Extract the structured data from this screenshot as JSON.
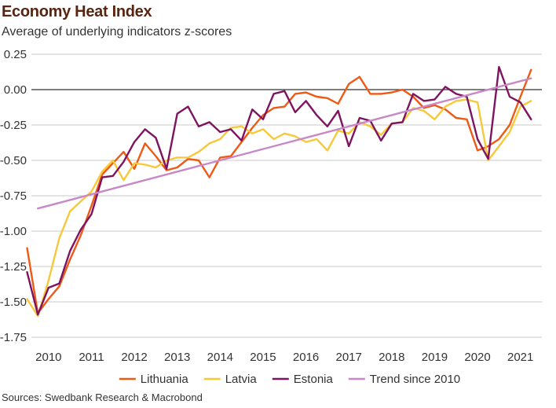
{
  "title": "Economy Heat Index",
  "subtitle": "Average of underlying indicators z-scores",
  "source": "Sources: Swedbank Research & Macrobond",
  "colors": {
    "lithuania": "#ee5a16",
    "latvia": "#f7c838",
    "estonia": "#7e1360",
    "trend": "#c887c6",
    "grid": "#c8c8c8",
    "zero_line": "#333333",
    "title": "#5a2410"
  },
  "chart_data": {
    "type": "line",
    "title": "Economy Heat Index",
    "subtitle": "Average of underlying indicators z-scores",
    "xlabel": "",
    "ylabel": "",
    "xlim": [
      2009.6,
      2021.5
    ],
    "ylim": [
      -1.75,
      0.25
    ],
    "y_ticks": [
      0.25,
      0.0,
      -0.25,
      -0.5,
      -0.75,
      -1.0,
      -1.25,
      -1.5,
      -1.75
    ],
    "y_tick_labels": [
      "0.25",
      "0.00",
      "-0.25",
      "-0.50",
      "-0.75",
      "-1.00",
      "-1.25",
      "-1.50",
      "-1.75"
    ],
    "x_ticks": [
      2010,
      2011,
      2012,
      2013,
      2014,
      2015,
      2016,
      2017,
      2018,
      2019,
      2020,
      2021
    ],
    "x_tick_labels": [
      "2010",
      "2011",
      "2012",
      "2013",
      "2014",
      "2015",
      "2016",
      "2017",
      "2018",
      "2019",
      "2020",
      "2021"
    ],
    "grid": true,
    "legend_position": "bottom",
    "series": [
      {
        "name": "Lithuania",
        "color": "#ee5a16",
        "x": [
          2009.5,
          2009.75,
          2010.0,
          2010.25,
          2010.5,
          2010.75,
          2011.0,
          2011.25,
          2011.5,
          2011.75,
          2012.0,
          2012.25,
          2012.5,
          2012.75,
          2013.0,
          2013.25,
          2013.5,
          2013.75,
          2014.0,
          2014.25,
          2014.5,
          2014.75,
          2015.0,
          2015.25,
          2015.5,
          2015.75,
          2016.0,
          2016.25,
          2016.5,
          2016.75,
          2017.0,
          2017.25,
          2017.5,
          2017.75,
          2018.0,
          2018.25,
          2018.5,
          2018.75,
          2019.0,
          2019.25,
          2019.5,
          2019.75,
          2020.0,
          2020.25,
          2020.5,
          2020.75,
          2021.0,
          2021.25
        ],
        "y": [
          -1.12,
          -1.58,
          -1.48,
          -1.39,
          -1.2,
          -1.03,
          -0.82,
          -0.6,
          -0.52,
          -0.44,
          -0.56,
          -0.38,
          -0.47,
          -0.57,
          -0.55,
          -0.49,
          -0.5,
          -0.62,
          -0.48,
          -0.47,
          -0.37,
          -0.27,
          -0.18,
          -0.13,
          -0.12,
          -0.03,
          -0.02,
          -0.05,
          -0.06,
          -0.1,
          0.04,
          0.09,
          -0.03,
          -0.03,
          -0.02,
          0.0,
          -0.05,
          -0.13,
          -0.11,
          -0.14,
          -0.2,
          -0.21,
          -0.43,
          -0.4,
          -0.35,
          -0.25,
          -0.05,
          0.14
        ]
      },
      {
        "name": "Latvia",
        "color": "#f7c838",
        "x": [
          2009.5,
          2009.75,
          2010.0,
          2010.25,
          2010.5,
          2010.75,
          2011.0,
          2011.25,
          2011.5,
          2011.75,
          2012.0,
          2012.25,
          2012.5,
          2012.75,
          2013.0,
          2013.25,
          2013.5,
          2013.75,
          2014.0,
          2014.25,
          2014.5,
          2014.75,
          2015.0,
          2015.25,
          2015.5,
          2015.75,
          2016.0,
          2016.25,
          2016.5,
          2016.75,
          2017.0,
          2017.25,
          2017.5,
          2017.75,
          2018.0,
          2018.25,
          2018.5,
          2018.75,
          2019.0,
          2019.25,
          2019.5,
          2019.75,
          2020.0,
          2020.25,
          2020.5,
          2020.75,
          2021.0,
          2021.25
        ],
        "y": [
          -1.48,
          -1.6,
          -1.35,
          -1.05,
          -0.86,
          -0.79,
          -0.72,
          -0.58,
          -0.5,
          -0.64,
          -0.52,
          -0.53,
          -0.55,
          -0.5,
          -0.48,
          -0.48,
          -0.44,
          -0.38,
          -0.35,
          -0.27,
          -0.26,
          -0.31,
          -0.28,
          -0.35,
          -0.31,
          -0.33,
          -0.37,
          -0.35,
          -0.43,
          -0.29,
          -0.31,
          -0.23,
          -0.26,
          -0.32,
          -0.24,
          -0.23,
          -0.13,
          -0.15,
          -0.21,
          -0.12,
          -0.08,
          -0.07,
          -0.09,
          -0.5,
          -0.4,
          -0.3,
          -0.12,
          -0.08
        ]
      },
      {
        "name": "Estonia",
        "color": "#7e1360",
        "x": [
          2009.5,
          2009.75,
          2010.0,
          2010.25,
          2010.5,
          2010.75,
          2011.0,
          2011.25,
          2011.5,
          2011.75,
          2012.0,
          2012.25,
          2012.5,
          2012.75,
          2013.0,
          2013.25,
          2013.5,
          2013.75,
          2014.0,
          2014.25,
          2014.5,
          2014.75,
          2015.0,
          2015.25,
          2015.5,
          2015.75,
          2016.0,
          2016.25,
          2016.5,
          2016.75,
          2017.0,
          2017.25,
          2017.5,
          2017.75,
          2018.0,
          2018.25,
          2018.5,
          2018.75,
          2019.0,
          2019.25,
          2019.5,
          2019.75,
          2020.0,
          2020.25,
          2020.5,
          2020.75,
          2021.0,
          2021.25
        ],
        "y": [
          -1.29,
          -1.59,
          -1.4,
          -1.37,
          -1.14,
          -0.99,
          -0.88,
          -0.62,
          -0.61,
          -0.51,
          -0.37,
          -0.28,
          -0.34,
          -0.56,
          -0.17,
          -0.12,
          -0.26,
          -0.23,
          -0.3,
          -0.28,
          -0.36,
          -0.14,
          -0.21,
          -0.03,
          -0.01,
          -0.16,
          -0.08,
          -0.18,
          -0.26,
          -0.15,
          -0.4,
          -0.2,
          -0.22,
          -0.36,
          -0.24,
          -0.23,
          -0.03,
          -0.08,
          -0.07,
          0.02,
          -0.03,
          -0.05,
          -0.35,
          -0.49,
          0.16,
          -0.05,
          -0.09,
          -0.21
        ]
      },
      {
        "name": "Trend since 2010",
        "color": "#c887c6",
        "x": [
          2009.75,
          2021.25
        ],
        "y": [
          -0.84,
          0.08
        ]
      }
    ]
  }
}
